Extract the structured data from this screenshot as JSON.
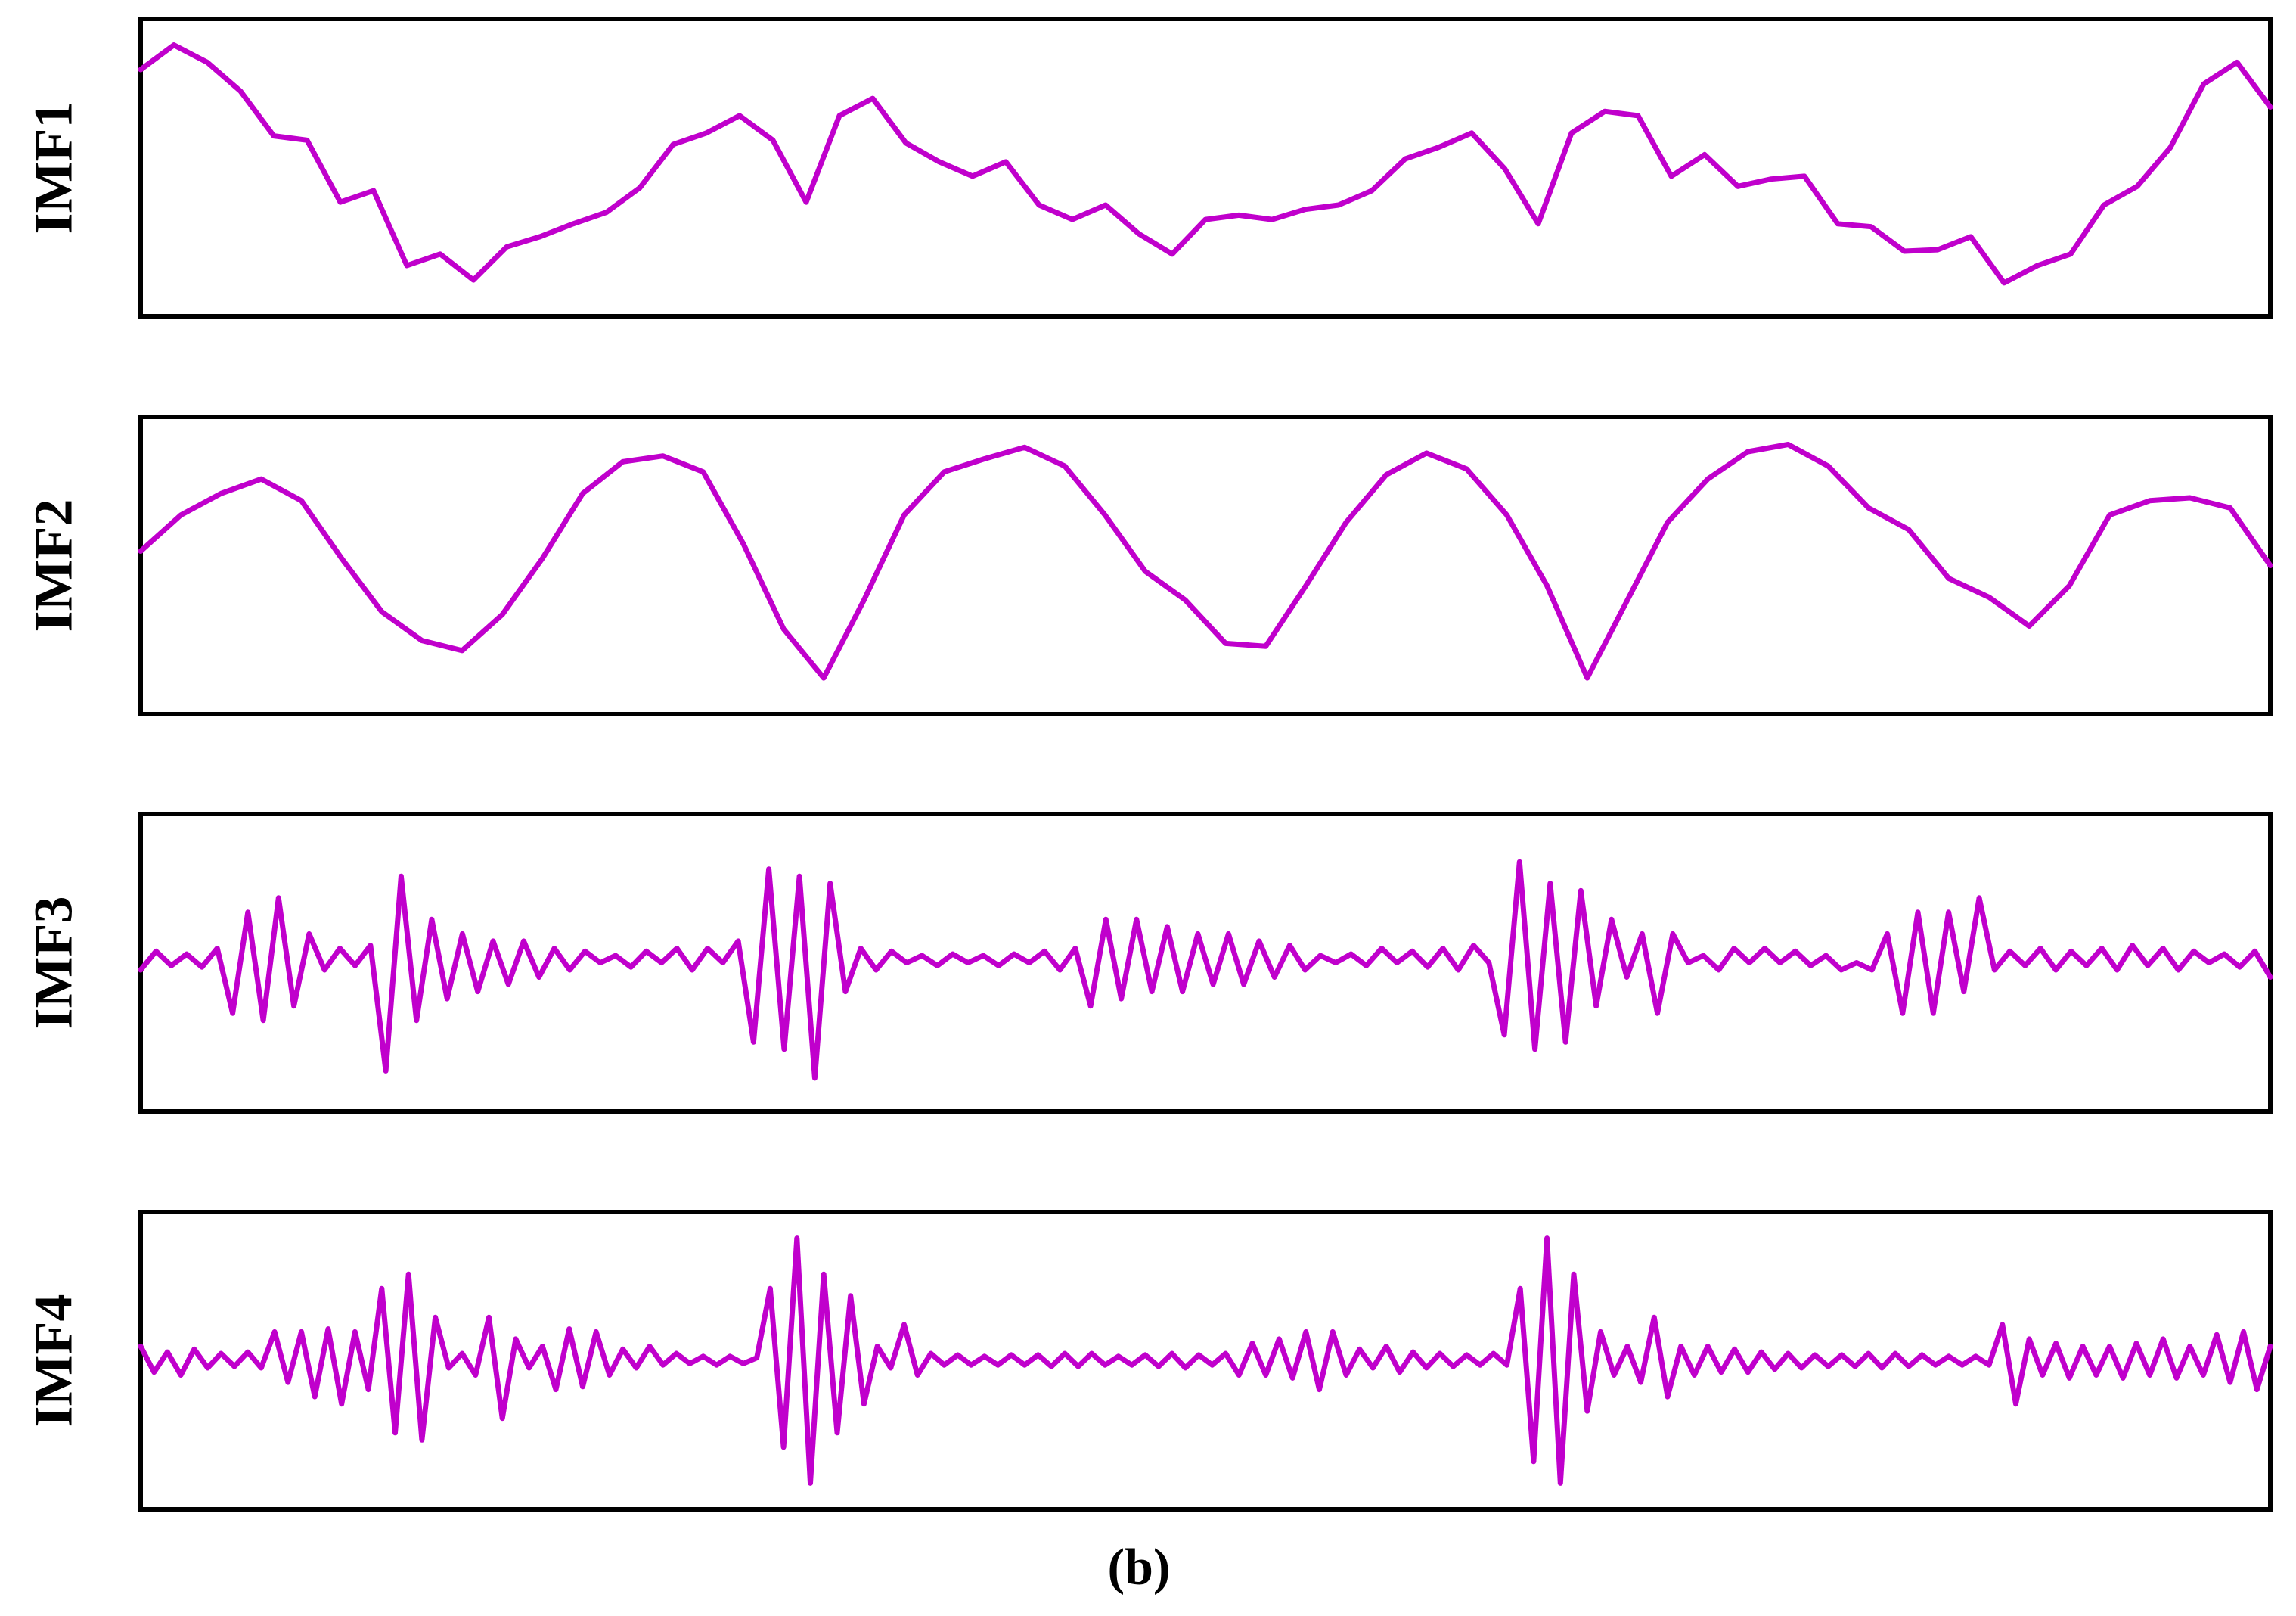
{
  "caption": "(b)",
  "chart_data": [
    {
      "type": "line",
      "ylabel": "IMF1",
      "color": "#c000cc",
      "ylim": [
        -1,
        1
      ],
      "values": [
        0.68,
        0.85,
        0.73,
        0.53,
        0.22,
        0.19,
        -0.24,
        -0.16,
        -0.68,
        -0.6,
        -0.78,
        -0.55,
        -0.48,
        -0.39,
        -0.31,
        -0.14,
        0.16,
        0.24,
        0.36,
        0.19,
        -0.24,
        0.36,
        0.48,
        0.17,
        0.04,
        -0.06,
        0.04,
        -0.26,
        -0.36,
        -0.26,
        -0.46,
        -0.6,
        -0.36,
        -0.33,
        -0.36,
        -0.29,
        -0.26,
        -0.16,
        0.06,
        0.14,
        0.24,
        -0.01,
        -0.39,
        0.24,
        0.39,
        0.36,
        -0.06,
        0.09,
        -0.13,
        -0.08,
        -0.06,
        -0.39,
        -0.41,
        -0.58,
        -0.57,
        -0.48,
        -0.8,
        -0.68,
        -0.6,
        -0.26,
        -0.13,
        0.14,
        0.58,
        0.73,
        0.42
      ]
    },
    {
      "type": "line",
      "ylabel": "IMF2",
      "color": "#c000cc",
      "ylim": [
        -1,
        1
      ],
      "values": [
        0.1,
        0.35,
        0.5,
        0.6,
        0.45,
        0.05,
        -0.32,
        -0.52,
        -0.59,
        -0.34,
        0.05,
        0.5,
        0.72,
        0.76,
        0.65,
        0.15,
        -0.44,
        -0.78,
        -0.24,
        0.35,
        0.65,
        0.74,
        0.82,
        0.69,
        0.35,
        -0.04,
        -0.24,
        -0.54,
        -0.56,
        -0.14,
        0.3,
        0.63,
        0.78,
        0.67,
        0.35,
        -0.14,
        -0.78,
        -0.24,
        0.3,
        0.6,
        0.79,
        0.84,
        0.69,
        0.4,
        0.25,
        -0.09,
        -0.22,
        -0.42,
        -0.14,
        0.35,
        0.45,
        0.47,
        0.4,
        0.0
      ]
    },
    {
      "type": "line",
      "ylabel": "IMF3",
      "color": "#c000cc",
      "ylim": [
        -1,
        1
      ],
      "values": [
        -0.05,
        0.08,
        -0.02,
        0.06,
        -0.03,
        0.1,
        -0.35,
        0.35,
        -0.4,
        0.45,
        -0.3,
        0.2,
        -0.05,
        0.1,
        -0.02,
        0.12,
        -0.75,
        0.6,
        -0.4,
        0.3,
        -0.25,
        0.2,
        -0.2,
        0.15,
        -0.15,
        0.15,
        -0.1,
        0.1,
        -0.05,
        0.08,
        0.0,
        0.05,
        -0.03,
        0.08,
        0.0,
        0.1,
        -0.05,
        0.1,
        0.0,
        0.15,
        -0.55,
        0.65,
        -0.6,
        0.6,
        -0.8,
        0.55,
        -0.2,
        0.1,
        -0.05,
        0.08,
        0.0,
        0.05,
        -0.02,
        0.06,
        0.0,
        0.05,
        -0.02,
        0.06,
        0.0,
        0.08,
        -0.05,
        0.1,
        -0.3,
        0.3,
        -0.25,
        0.3,
        -0.2,
        0.25,
        -0.2,
        0.2,
        -0.15,
        0.2,
        -0.15,
        0.15,
        -0.1,
        0.12,
        -0.05,
        0.05,
        0.0,
        0.06,
        -0.02,
        0.1,
        0.0,
        0.08,
        -0.03,
        0.1,
        -0.05,
        0.12,
        0.0,
        -0.5,
        0.7,
        -0.6,
        0.55,
        -0.55,
        0.5,
        -0.3,
        0.3,
        -0.1,
        0.2,
        -0.35,
        0.2,
        0.0,
        0.05,
        -0.05,
        0.1,
        0.0,
        0.1,
        0.0,
        0.08,
        -0.02,
        0.05,
        -0.05,
        0.0,
        -0.05,
        0.2,
        -0.35,
        0.35,
        -0.35,
        0.35,
        -0.2,
        0.45,
        -0.05,
        0.08,
        -0.02,
        0.1,
        -0.05,
        0.08,
        -0.02,
        0.1,
        -0.05,
        0.12,
        -0.02,
        0.1,
        -0.05,
        0.08,
        0.0,
        0.06,
        -0.03,
        0.08,
        -0.1
      ]
    },
    {
      "type": "line",
      "ylabel": "IMF4",
      "color": "#c000cc",
      "ylim": [
        -1,
        1
      ],
      "values": [
        0.1,
        -0.08,
        0.06,
        -0.1,
        0.08,
        -0.05,
        0.05,
        -0.04,
        0.06,
        -0.05,
        0.2,
        -0.15,
        0.2,
        -0.25,
        0.22,
        -0.3,
        0.2,
        -0.2,
        0.5,
        -0.5,
        0.6,
        -0.55,
        0.3,
        -0.05,
        0.05,
        -0.1,
        0.3,
        -0.4,
        0.15,
        -0.05,
        0.1,
        -0.2,
        0.22,
        -0.18,
        0.2,
        -0.1,
        0.08,
        -0.05,
        0.1,
        -0.03,
        0.05,
        -0.02,
        0.03,
        -0.03,
        0.03,
        -0.02,
        0.02,
        0.5,
        -0.6,
        0.85,
        -0.85,
        0.6,
        -0.5,
        0.45,
        -0.3,
        0.1,
        -0.05,
        0.25,
        -0.1,
        0.05,
        -0.03,
        0.04,
        -0.03,
        0.03,
        -0.03,
        0.04,
        -0.03,
        0.04,
        -0.04,
        0.05,
        -0.04,
        0.05,
        -0.03,
        0.03,
        -0.03,
        0.04,
        -0.04,
        0.05,
        -0.05,
        0.04,
        -0.03,
        0.05,
        -0.1,
        0.12,
        -0.1,
        0.15,
        -0.12,
        0.2,
        -0.2,
        0.2,
        -0.1,
        0.08,
        -0.05,
        0.1,
        -0.08,
        0.06,
        -0.05,
        0.05,
        -0.04,
        0.04,
        -0.03,
        0.05,
        -0.03,
        0.5,
        -0.7,
        0.85,
        -0.85,
        0.6,
        -0.35,
        0.2,
        -0.1,
        0.1,
        -0.15,
        0.3,
        -0.25,
        0.1,
        -0.1,
        0.1,
        -0.08,
        0.08,
        -0.08,
        0.06,
        -0.06,
        0.05,
        -0.05,
        0.04,
        -0.04,
        0.04,
        -0.04,
        0.05,
        -0.05,
        0.05,
        -0.04,
        0.04,
        -0.03,
        0.03,
        -0.03,
        0.03,
        -0.03,
        0.25,
        -0.3,
        0.15,
        -0.1,
        0.12,
        -0.12,
        0.1,
        -0.1,
        0.1,
        -0.12,
        0.12,
        -0.1,
        0.15,
        -0.12,
        0.1,
        -0.1,
        0.18,
        -0.15,
        0.2,
        -0.2,
        0.1
      ]
    }
  ]
}
